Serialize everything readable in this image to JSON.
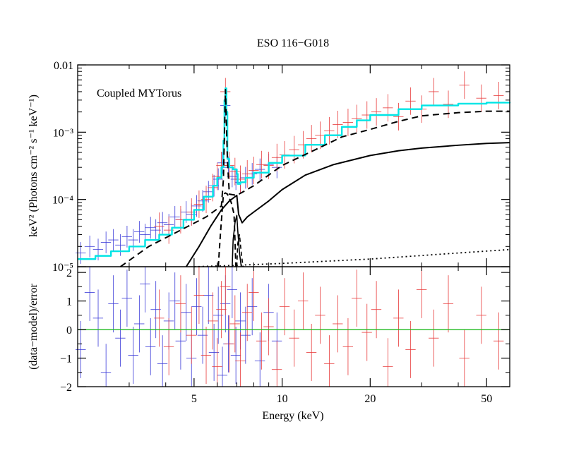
{
  "chart_data": {
    "type": "line",
    "title": "ESO 116−G018",
    "annotation": "Coupled MYTorus",
    "xlabel": "Energy (keV)",
    "x_scale": "log",
    "xlim": [
      2.0,
      60.0
    ],
    "x_ticks": [
      5,
      10,
      20,
      50
    ],
    "x_tick_labels": [
      "5",
      "10",
      "20",
      "50"
    ],
    "colors": {
      "model_total": "#00e5e5",
      "data_fpma": "#e83a3a",
      "data_xmm": "#3a3ad8",
      "zero_line": "#22bb22",
      "components": "#000000"
    },
    "top_panel": {
      "ylabel": "keV² (Photons cm⁻² s⁻¹ keV⁻¹)",
      "y_scale": "log",
      "ylim": [
        1e-05,
        0.01
      ],
      "y_ticks": [
        1e-05,
        0.0001,
        0.001,
        0.01
      ],
      "y_tick_labels": [
        "10⁻⁵",
        "10⁻⁴",
        "10⁻³",
        "0.01"
      ],
      "series": [
        {
          "style": "total-model-step-cyan",
          "x": [
            2.0,
            2.3,
            2.6,
            3.0,
            3.4,
            3.8,
            4.2,
            4.6,
            5.0,
            5.4,
            5.8,
            6.0,
            6.2,
            6.3,
            6.35,
            6.4,
            6.45,
            6.5,
            6.6,
            6.8,
            7.0,
            7.05,
            7.2,
            7.5,
            8.0,
            9.0,
            10.0,
            12.0,
            14.0,
            16.0,
            18.0,
            20.0,
            25.0,
            30.0,
            40.0,
            50.0,
            60.0
          ],
          "y": [
            1.3e-05,
            1.45e-05,
            1.7e-05,
            2e-05,
            2.5e-05,
            3e-05,
            3.8e-05,
            5e-05,
            7e-05,
            0.00011,
            0.00016,
            0.00021,
            0.0003,
            0.00075,
            0.003,
            0.0045,
            0.002,
            0.0004,
            0.0003,
            0.00028,
            0.00024,
            0.00017,
            0.00018,
            0.00021,
            0.00025,
            0.00035,
            0.00045,
            0.00065,
            0.0009,
            0.0012,
            0.0015,
            0.0018,
            0.0022,
            0.0025,
            0.00265,
            0.00275,
            0.0028
          ]
        },
        {
          "style": "dashed-reflection",
          "x": [
            2.8,
            3.5,
            4.5,
            5.5,
            6.2,
            6.3,
            6.4,
            6.5,
            6.6,
            7.0,
            8.0,
            10.0,
            13.0,
            16.0,
            20.0,
            25.0,
            30.0,
            40.0,
            50.0,
            60.0
          ],
          "y": [
            1e-05,
            2e-05,
            3.5e-05,
            5.5e-05,
            8e-05,
            0.0002,
            0.0043,
            0.0004,
            0.00012,
            0.000115,
            0.00016,
            0.00032,
            0.00055,
            0.00085,
            0.0011,
            0.00145,
            0.00175,
            0.00195,
            0.00205,
            0.00205
          ]
        },
        {
          "style": "solid-transmitted",
          "x": [
            4.7,
            5.2,
            5.7,
            6.2,
            6.6,
            7.0,
            7.1,
            7.3,
            7.6,
            8.0,
            9.0,
            10.0,
            12.0,
            15.0,
            20.0,
            25.0,
            30.0,
            40.0,
            50.0,
            60.0
          ],
          "y": [
            1e-05,
            2e-05,
            4e-05,
            7e-05,
            9.5e-05,
            0.000115,
            6e-05,
            4.5e-05,
            5.5e-05,
            6.5e-05,
            9.5e-05,
            0.00014,
            0.00023,
            0.00033,
            0.00045,
            0.00053,
            0.00058,
            0.00064,
            0.00068,
            0.0007
          ]
        },
        {
          "style": "dashed-line-component",
          "x": [
            6.05,
            6.15,
            6.3,
            6.4,
            6.5,
            6.7,
            6.85,
            6.95
          ],
          "y": [
            1e-05,
            3e-05,
            0.00012,
            0.000125,
            0.00012,
            9e-05,
            6e-05,
            1e-05
          ]
        },
        {
          "style": "solid-line-component",
          "x": [
            6.75,
            6.8,
            6.9,
            7.0,
            7.05,
            7.15,
            7.25
          ],
          "y": [
            1e-05,
            2.5e-05,
            4.5e-05,
            5.8e-05,
            3.5e-05,
            1.6e-05,
            1e-05
          ]
        },
        {
          "style": "dashed-edge-component",
          "x": [
            7.0,
            7.05,
            7.15,
            7.25,
            7.35
          ],
          "y": [
            1e-05,
            2.2e-05,
            3e-05,
            1.6e-05,
            1e-05
          ]
        },
        {
          "style": "dotted-scattered",
          "x": [
            5.0,
            7.0,
            10.0,
            20.0,
            40.0,
            60.0
          ],
          "y": [
            1e-05,
            1.05e-05,
            1.12e-05,
            1.3e-05,
            1.6e-05,
            1.8e-05
          ]
        }
      ],
      "data_points": {
        "fpma": [
          [
            3.8,
            4e-05
          ],
          [
            4.1,
            3.5e-05
          ],
          [
            4.5,
            5e-05
          ],
          [
            4.9,
            6.5e-05
          ],
          [
            5.2,
            8.5e-05
          ],
          [
            5.5,
            0.0001
          ],
          [
            5.8,
            0.00015
          ],
          [
            6.0,
            0.00022
          ],
          [
            6.2,
            0.00032
          ],
          [
            6.4,
            0.004
          ],
          [
            6.6,
            0.00032
          ],
          [
            6.9,
            0.00026
          ],
          [
            7.2,
            0.0002
          ],
          [
            7.6,
            0.00024
          ],
          [
            8.0,
            0.00027
          ],
          [
            8.5,
            0.00033
          ],
          [
            9.0,
            0.00032
          ],
          [
            9.6,
            0.00042
          ],
          [
            10.2,
            0.00046
          ],
          [
            11.0,
            0.00055
          ],
          [
            11.8,
            0.00065
          ],
          [
            12.6,
            0.0008
          ],
          [
            13.5,
            0.0009
          ],
          [
            14.5,
            0.00105
          ],
          [
            15.5,
            0.0013
          ],
          [
            16.8,
            0.0014
          ],
          [
            18.0,
            0.0016
          ],
          [
            19.5,
            0.0018
          ],
          [
            21.0,
            0.002
          ],
          [
            23.0,
            0.0023
          ],
          [
            25.0,
            0.0017
          ],
          [
            27.5,
            0.0029
          ],
          [
            30.0,
            0.0022
          ],
          [
            33.0,
            0.004
          ],
          [
            37.0,
            0.0026
          ],
          [
            42.0,
            0.005
          ],
          [
            48.0,
            0.0032
          ],
          [
            55.0,
            0.0035
          ]
        ],
        "xmm": [
          [
            2.05,
            1.6e-05
          ],
          [
            2.2,
            2e-05
          ],
          [
            2.35,
            1.8e-05
          ],
          [
            2.5,
            2.3e-05
          ],
          [
            2.65,
            2.5e-05
          ],
          [
            2.8,
            2.1e-05
          ],
          [
            2.95,
            2.8e-05
          ],
          [
            3.1,
            2.5e-05
          ],
          [
            3.25,
            3.3e-05
          ],
          [
            3.4,
            3e-05
          ],
          [
            3.55,
            3.8e-05
          ],
          [
            3.7,
            3.5e-05
          ],
          [
            3.9,
            4.5e-05
          ],
          [
            4.1,
            4.2e-05
          ],
          [
            4.3,
            5.5e-05
          ],
          [
            4.5,
            5e-05
          ],
          [
            4.7,
            6.5e-05
          ],
          [
            4.9,
            6e-05
          ],
          [
            5.1,
            8e-05
          ],
          [
            5.35,
            9.5e-05
          ],
          [
            5.6,
            0.00013
          ],
          [
            5.85,
            0.00016
          ],
          [
            6.05,
            0.0002
          ],
          [
            6.25,
            0.00035
          ],
          [
            6.4,
            0.0025
          ],
          [
            6.55,
            0.0003
          ],
          [
            6.75,
            0.00022
          ],
          [
            6.95,
            0.0002
          ],
          [
            7.2,
            0.00018
          ],
          [
            7.5,
            0.00021
          ],
          [
            7.9,
            0.00024
          ],
          [
            8.4,
            0.00028
          ],
          [
            9.0,
            0.00033
          ],
          [
            9.6,
            0.0003
          ]
        ]
      }
    },
    "bottom_panel": {
      "ylabel": "(data−model)/error",
      "y_scale": "linear",
      "ylim": [
        -2,
        2.2
      ],
      "y_ticks": [
        -2,
        -1,
        0,
        1,
        2
      ],
      "y_tick_labels": [
        "−2",
        "−1",
        "0",
        "1",
        "2"
      ],
      "zero_line": 0,
      "residuals": {
        "fpma": [
          [
            3.8,
            0.4
          ],
          [
            4.1,
            -0.6
          ],
          [
            4.5,
            0.9
          ],
          [
            4.9,
            -0.2
          ],
          [
            5.2,
            1.2
          ],
          [
            5.5,
            -0.9
          ],
          [
            5.8,
            0.3
          ],
          [
            6.0,
            -1.3
          ],
          [
            6.2,
            0.7
          ],
          [
            6.4,
            1.5
          ],
          [
            6.6,
            -0.5
          ],
          [
            6.9,
            0.2
          ],
          [
            7.2,
            -1.1
          ],
          [
            7.6,
            0.6
          ],
          [
            8.0,
            1.3
          ],
          [
            8.5,
            -0.4
          ],
          [
            9.0,
            0.1
          ],
          [
            9.6,
            -1.4
          ],
          [
            10.2,
            0.8
          ],
          [
            11.0,
            -0.3
          ],
          [
            11.8,
            1.0
          ],
          [
            12.6,
            -0.8
          ],
          [
            13.5,
            0.5
          ],
          [
            14.5,
            -1.2
          ],
          [
            15.5,
            0.2
          ],
          [
            16.8,
            -0.6
          ],
          [
            18.0,
            1.1
          ],
          [
            19.5,
            -0.1
          ],
          [
            21.0,
            0.7
          ],
          [
            23.0,
            -1.3
          ],
          [
            25.0,
            0.4
          ],
          [
            27.5,
            -0.7
          ],
          [
            30.0,
            1.4
          ],
          [
            33.0,
            -0.3
          ],
          [
            37.0,
            0.9
          ],
          [
            42.0,
            -1.0
          ],
          [
            48.0,
            0.5
          ],
          [
            55.0,
            -0.4
          ]
        ],
        "xmm": [
          [
            2.05,
            -0.7
          ],
          [
            2.2,
            1.3
          ],
          [
            2.35,
            0.4
          ],
          [
            2.5,
            -1.5
          ],
          [
            2.65,
            0.9
          ],
          [
            2.8,
            -0.3
          ],
          [
            2.95,
            1.1
          ],
          [
            3.1,
            -0.9
          ],
          [
            3.25,
            0.2
          ],
          [
            3.4,
            1.6
          ],
          [
            3.55,
            -0.6
          ],
          [
            3.7,
            0.7
          ],
          [
            3.9,
            -1.2
          ],
          [
            4.1,
            0.3
          ],
          [
            4.3,
            1.0
          ],
          [
            4.5,
            -0.4
          ],
          [
            4.7,
            0.6
          ],
          [
            4.9,
            -1.0
          ],
          [
            5.1,
            0.8
          ],
          [
            5.35,
            -0.2
          ],
          [
            5.6,
            1.2
          ],
          [
            5.85,
            -0.8
          ],
          [
            6.05,
            0.5
          ],
          [
            6.25,
            -1.6
          ],
          [
            6.4,
            0.9
          ],
          [
            6.55,
            -0.5
          ],
          [
            6.75,
            1.4
          ],
          [
            6.95,
            -0.9
          ],
          [
            7.2,
            0.3
          ],
          [
            7.5,
            -0.2
          ],
          [
            7.9,
            0.8
          ],
          [
            8.4,
            -1.1
          ],
          [
            9.0,
            0.6
          ],
          [
            9.6,
            -0.4
          ]
        ]
      }
    }
  }
}
